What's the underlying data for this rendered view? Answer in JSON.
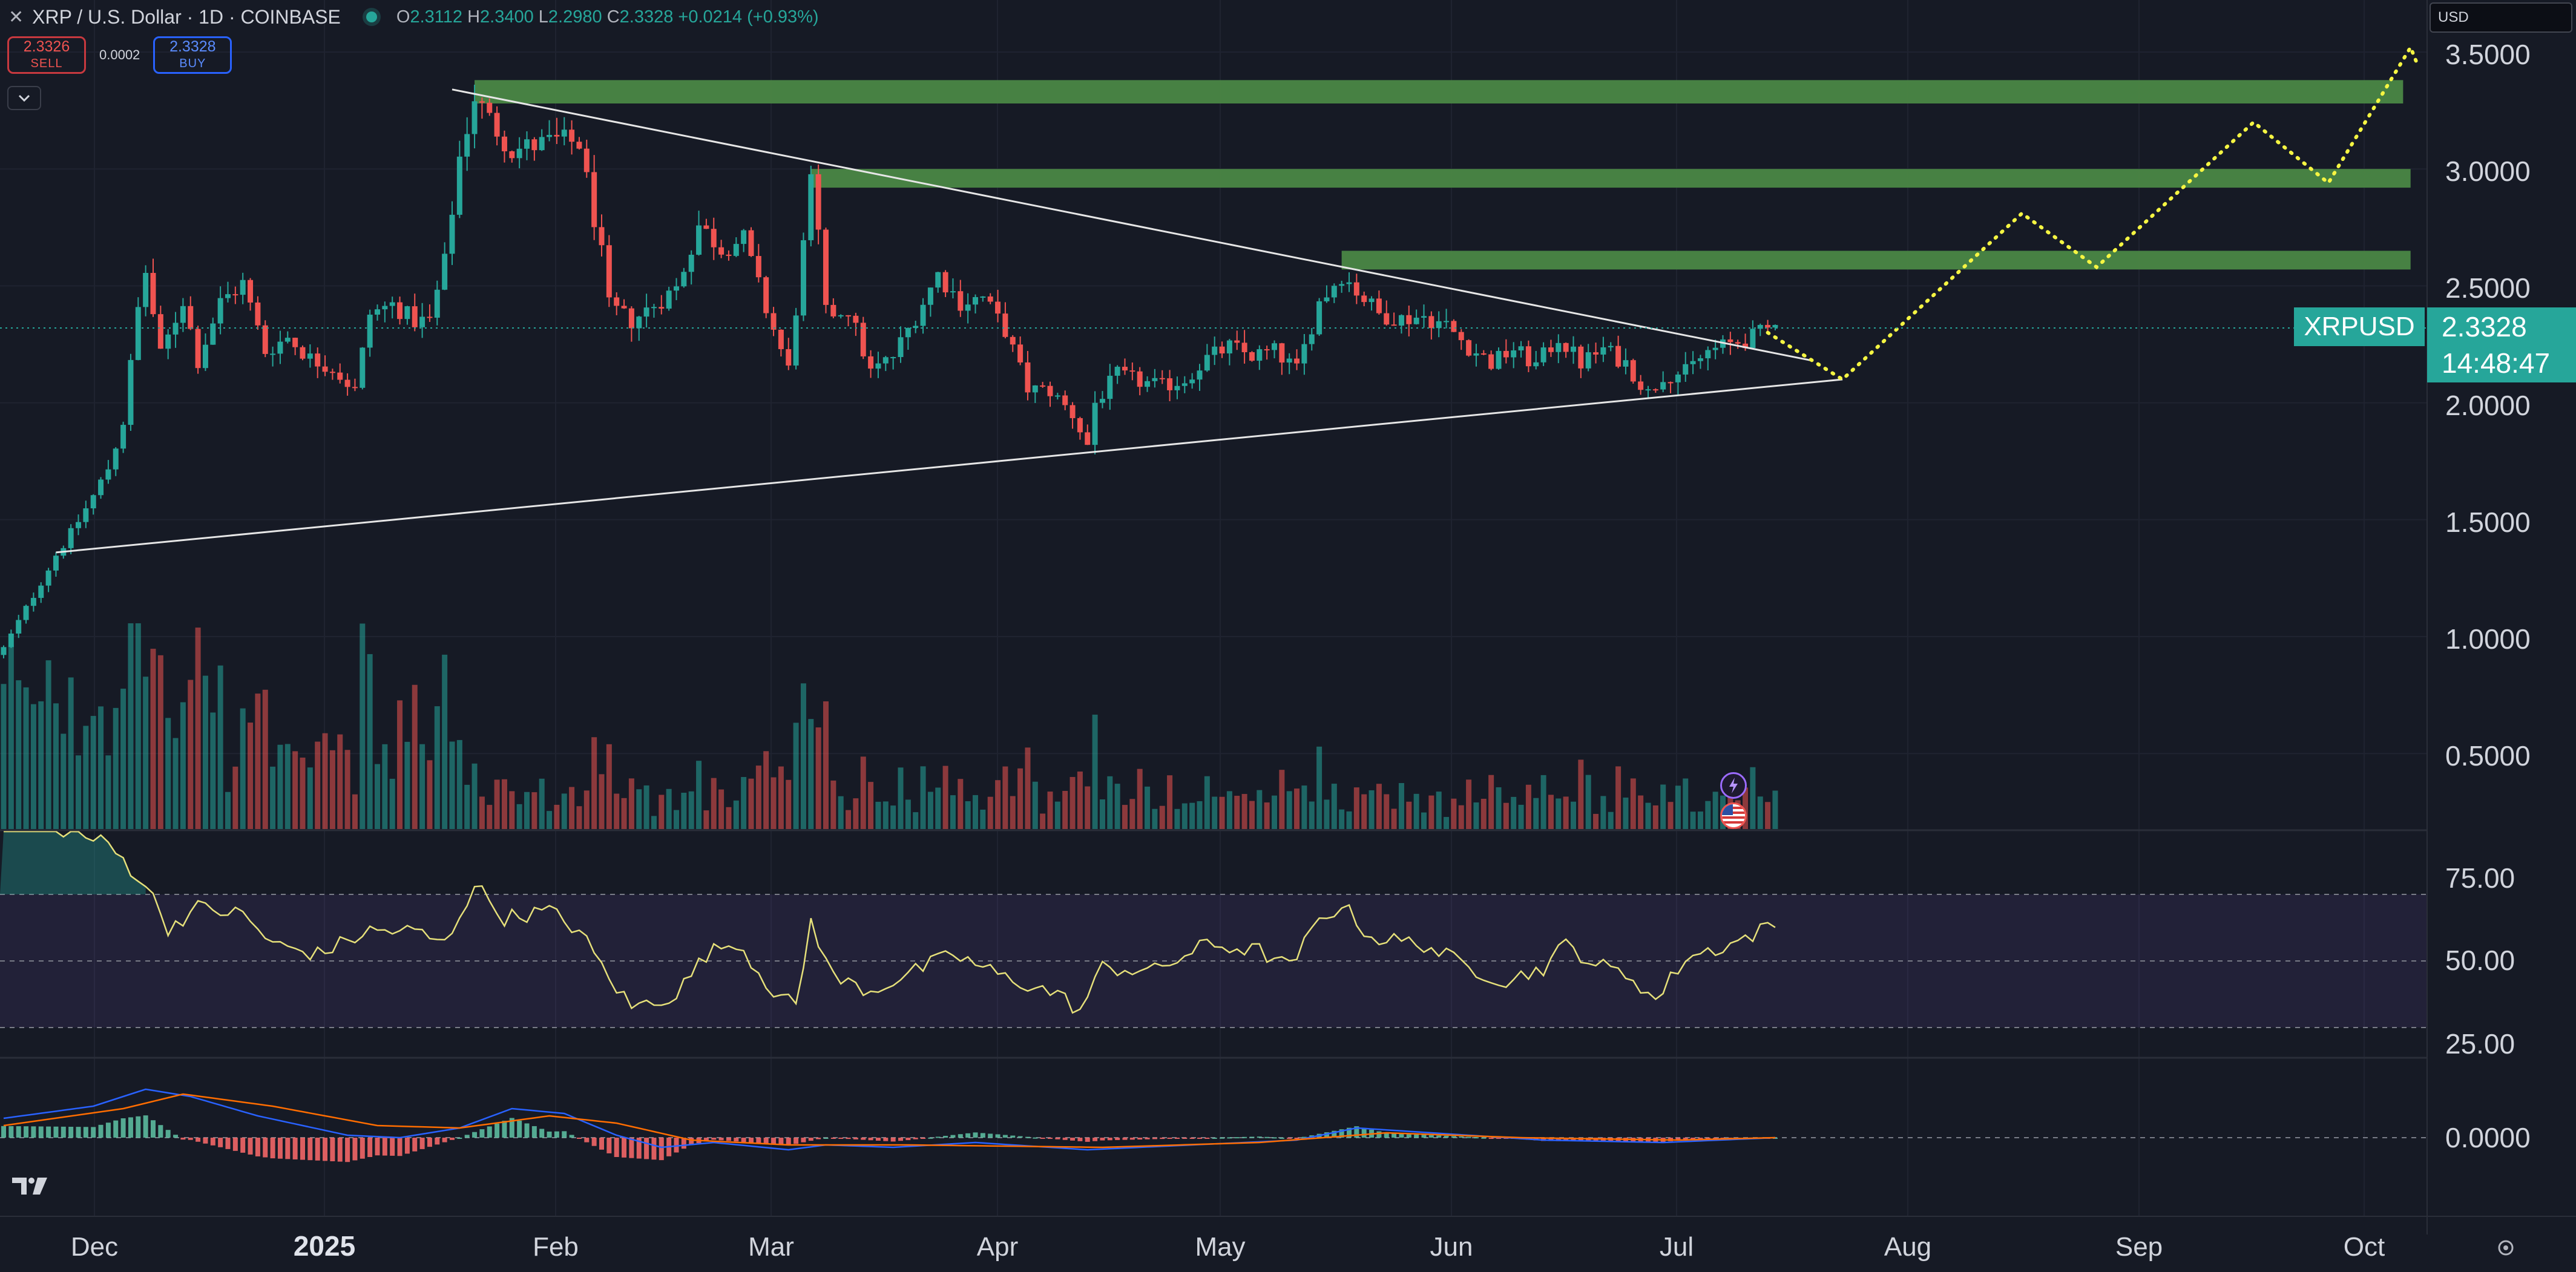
{
  "header": {
    "close_glyph": "✕",
    "symbol_title": "XRP / U.S. Dollar · 1D · COINBASE",
    "ohlc": {
      "o_label": "O",
      "o": "2.3112",
      "h_label": "H",
      "h": "2.3400",
      "l_label": "L",
      "l": "2.2980",
      "c_label": "C",
      "c": "2.3328",
      "change": "+0.0214 (+0.93%)"
    }
  },
  "trade": {
    "sell_price": "2.3326",
    "sell_label": "SELL",
    "spread": "0.0002",
    "buy_price": "2.3328",
    "buy_label": "BUY"
  },
  "currency_select": {
    "value": "USD"
  },
  "price_axis": {
    "labels": [
      "3.5000",
      "3.0000",
      "2.5000",
      "2.0000",
      "1.5000",
      "1.0000",
      "0.5000"
    ],
    "current_symbol": "XRPUSD",
    "current_price": "2.3328",
    "countdown": "14:48:47"
  },
  "rsi_axis": {
    "labels": [
      "75.00",
      "50.00",
      "25.00"
    ]
  },
  "macd_axis": {
    "labels": [
      "0.0000"
    ]
  },
  "time_axis": {
    "labels": [
      "Dec",
      "2025",
      "Feb",
      "Mar",
      "Apr",
      "May",
      "Jun",
      "Jul",
      "Aug",
      "Sep",
      "Oct"
    ]
  },
  "colors": {
    "background": "#161a25",
    "up": "#26a69a",
    "down": "#ef5350",
    "resistance_zone": "#4c8a45",
    "projection": "#f5f542",
    "rsi_line": "#e6e07a",
    "macd_line": "#2962ff",
    "signal_line": "#ff6d00"
  },
  "icons": [
    "close-icon",
    "chevron-down-icon",
    "tradingview-logo-icon",
    "lightning-event-icon",
    "us-flag-event-icon",
    "settings-icon"
  ],
  "chart_data": {
    "type": "candlestick",
    "timeframe": "1D",
    "x_range": [
      "2024-11-14",
      "2025-10-06"
    ],
    "y_range": [
      0.15,
      3.65
    ],
    "resistance_zones": [
      {
        "start": "2025-01-16",
        "end": "2025-10-01",
        "low": 3.28,
        "high": 3.38
      },
      {
        "start": "2025-03-02",
        "end": "2025-10-02",
        "low": 2.92,
        "high": 3.0
      },
      {
        "start": "2025-05-12",
        "end": "2025-10-02",
        "low": 2.57,
        "high": 2.65
      }
    ],
    "trendlines": [
      {
        "from": {
          "date": "2025-01-13",
          "price": 3.34
        },
        "to": {
          "date": "2025-07-14",
          "price": 2.18
        }
      },
      {
        "from": {
          "date": "2024-11-21",
          "price": 1.36
        },
        "to": {
          "date": "2025-07-18",
          "price": 2.1
        }
      }
    ],
    "projection_path": [
      {
        "date": "2025-07-08",
        "price": 2.3
      },
      {
        "date": "2025-07-18",
        "price": 2.1
      },
      {
        "date": "2025-08-11",
        "price": 2.81
      },
      {
        "date": "2025-08-21",
        "price": 2.58
      },
      {
        "date": "2025-09-11",
        "price": 3.2
      },
      {
        "date": "2025-09-21",
        "price": 2.94
      },
      {
        "date": "2025-10-02",
        "price": 3.52
      },
      {
        "date": "2025-10-03",
        "price": 3.44
      }
    ],
    "close_anchors": [
      [
        "2024-11-14",
        0.95
      ],
      [
        "2024-11-17",
        1.12
      ],
      [
        "2024-11-21",
        1.35
      ],
      [
        "2024-11-23",
        1.44
      ],
      [
        "2024-11-26",
        1.6
      ],
      [
        "2024-11-28",
        1.72
      ],
      [
        "2024-11-30",
        1.92
      ],
      [
        "2024-12-02",
        2.4
      ],
      [
        "2024-12-03",
        2.56
      ],
      [
        "2024-12-05",
        2.2
      ],
      [
        "2024-12-08",
        2.44
      ],
      [
        "2024-12-10",
        2.18
      ],
      [
        "2024-12-13",
        2.43
      ],
      [
        "2024-12-16",
        2.51
      ],
      [
        "2024-12-19",
        2.22
      ],
      [
        "2024-12-22",
        2.28
      ],
      [
        "2024-12-25",
        2.19
      ],
      [
        "2024-12-28",
        2.15
      ],
      [
        "2024-12-31",
        2.05
      ],
      [
        "2025-01-02",
        2.38
      ],
      [
        "2025-01-05",
        2.42
      ],
      [
        "2025-01-08",
        2.35
      ],
      [
        "2025-01-10",
        2.35
      ],
      [
        "2025-01-12",
        2.6
      ],
      [
        "2025-01-14",
        3.05
      ],
      [
        "2025-01-16",
        3.31
      ],
      [
        "2025-01-18",
        3.21
      ],
      [
        "2025-01-21",
        3.08
      ],
      [
        "2025-01-24",
        3.1
      ],
      [
        "2025-01-27",
        3.12
      ],
      [
        "2025-01-30",
        3.11
      ],
      [
        "2025-02-02",
        2.63
      ],
      [
        "2025-02-03",
        2.41
      ],
      [
        "2025-02-06",
        2.35
      ],
      [
        "2025-02-09",
        2.42
      ],
      [
        "2025-02-12",
        2.49
      ],
      [
        "2025-02-15",
        2.76
      ],
      [
        "2025-02-18",
        2.66
      ],
      [
        "2025-02-21",
        2.7
      ],
      [
        "2025-02-24",
        2.4
      ],
      [
        "2025-02-27",
        2.14
      ],
      [
        "2025-03-02",
        2.93
      ],
      [
        "2025-03-03",
        2.71
      ],
      [
        "2025-03-04",
        2.38
      ],
      [
        "2025-03-07",
        2.4
      ],
      [
        "2025-03-10",
        2.13
      ],
      [
        "2025-03-13",
        2.2
      ],
      [
        "2025-03-16",
        2.37
      ],
      [
        "2025-03-19",
        2.55
      ],
      [
        "2025-03-22",
        2.43
      ],
      [
        "2025-03-25",
        2.45
      ],
      [
        "2025-03-28",
        2.31
      ],
      [
        "2025-03-31",
        2.06
      ],
      [
        "2025-04-03",
        2.05
      ],
      [
        "2025-04-06",
        1.95
      ],
      [
        "2025-04-08",
        1.82
      ],
      [
        "2025-04-09",
        2.0
      ],
      [
        "2025-04-12",
        2.12
      ],
      [
        "2025-04-15",
        2.09
      ],
      [
        "2025-04-18",
        2.07
      ],
      [
        "2025-04-21",
        2.1
      ],
      [
        "2025-04-24",
        2.19
      ],
      [
        "2025-04-27",
        2.24
      ],
      [
        "2025-04-30",
        2.2
      ],
      [
        "2025-05-03",
        2.22
      ],
      [
        "2025-05-06",
        2.14
      ],
      [
        "2025-05-09",
        2.43
      ],
      [
        "2025-05-12",
        2.55
      ],
      [
        "2025-05-14",
        2.48
      ],
      [
        "2025-05-17",
        2.38
      ],
      [
        "2025-05-20",
        2.36
      ],
      [
        "2025-05-23",
        2.37
      ],
      [
        "2025-05-26",
        2.33
      ],
      [
        "2025-05-29",
        2.24
      ],
      [
        "2025-06-01",
        2.17
      ],
      [
        "2025-06-04",
        2.23
      ],
      [
        "2025-06-07",
        2.16
      ],
      [
        "2025-06-10",
        2.28
      ],
      [
        "2025-06-13",
        2.17
      ],
      [
        "2025-06-16",
        2.23
      ],
      [
        "2025-06-19",
        2.17
      ],
      [
        "2025-06-22",
        2.04
      ],
      [
        "2025-06-24",
        2.12
      ],
      [
        "2025-06-27",
        2.13
      ],
      [
        "2025-06-30",
        2.22
      ],
      [
        "2025-07-03",
        2.25
      ],
      [
        "2025-07-06",
        2.28
      ],
      [
        "2025-07-09",
        2.3328
      ]
    ],
    "rsi": {
      "y_range": [
        20,
        95
      ],
      "band": [
        30,
        70
      ],
      "anchors": [
        [
          "2024-11-14",
          93
        ],
        [
          "2024-11-20",
          91
        ],
        [
          "2024-11-28",
          85
        ],
        [
          "2024-12-03",
          73
        ],
        [
          "2024-12-06",
          60
        ],
        [
          "2024-12-10",
          66
        ],
        [
          "2024-12-16",
          64
        ],
        [
          "2024-12-20",
          55
        ],
        [
          "2024-12-26",
          52
        ],
        [
          "2025-01-02",
          59
        ],
        [
          "2025-01-08",
          59
        ],
        [
          "2025-01-12",
          55
        ],
        [
          "2025-01-16",
          73
        ],
        [
          "2025-01-20",
          63
        ],
        [
          "2025-01-26",
          65
        ],
        [
          "2025-01-30",
          59
        ],
        [
          "2025-02-03",
          45
        ],
        [
          "2025-02-06",
          36
        ],
        [
          "2025-02-12",
          40
        ],
        [
          "2025-02-16",
          52
        ],
        [
          "2025-02-20",
          56
        ],
        [
          "2025-02-25",
          41
        ],
        [
          "2025-02-28",
          36
        ],
        [
          "2025-03-02",
          62
        ],
        [
          "2025-03-05",
          45
        ],
        [
          "2025-03-10",
          41
        ],
        [
          "2025-03-17",
          48
        ],
        [
          "2025-03-21",
          52
        ],
        [
          "2025-03-28",
          45
        ],
        [
          "2025-04-04",
          40
        ],
        [
          "2025-04-07",
          35
        ],
        [
          "2025-04-10",
          48
        ],
        [
          "2025-04-17",
          47
        ],
        [
          "2025-04-24",
          55
        ],
        [
          "2025-05-01",
          53
        ],
        [
          "2025-05-05",
          48
        ],
        [
          "2025-05-09",
          62
        ],
        [
          "2025-05-12",
          67
        ],
        [
          "2025-05-16",
          57
        ],
        [
          "2025-05-23",
          55
        ],
        [
          "2025-05-29",
          48
        ],
        [
          "2025-06-03",
          44
        ],
        [
          "2025-06-08",
          48
        ],
        [
          "2025-06-11",
          55
        ],
        [
          "2025-06-15",
          49
        ],
        [
          "2025-06-20",
          45
        ],
        [
          "2025-06-23",
          38
        ],
        [
          "2025-06-27",
          51
        ],
        [
          "2025-07-03",
          55
        ],
        [
          "2025-07-09",
          61
        ]
      ]
    },
    "macd": {
      "y_range": [
        -0.12,
        0.2
      ],
      "zero": 0,
      "macd_anchors": [
        [
          "2024-11-14",
          0.08
        ],
        [
          "2024-11-26",
          0.13
        ],
        [
          "2024-12-03",
          0.2
        ],
        [
          "2024-12-09",
          0.17
        ],
        [
          "2024-12-18",
          0.09
        ],
        [
          "2024-12-30",
          0.01
        ],
        [
          "2025-01-06",
          0.0
        ],
        [
          "2025-01-14",
          0.04
        ],
        [
          "2025-01-21",
          0.12
        ],
        [
          "2025-01-28",
          0.1
        ],
        [
          "2025-02-04",
          0.01
        ],
        [
          "2025-02-10",
          -0.04
        ],
        [
          "2025-02-17",
          -0.02
        ],
        [
          "2025-02-27",
          -0.05
        ],
        [
          "2025-03-04",
          -0.03
        ],
        [
          "2025-03-13",
          -0.04
        ],
        [
          "2025-03-24",
          -0.02
        ],
        [
          "2025-04-08",
          -0.05
        ],
        [
          "2025-04-22",
          -0.03
        ],
        [
          "2025-05-06",
          -0.01
        ],
        [
          "2025-05-14",
          0.04
        ],
        [
          "2025-05-24",
          0.02
        ],
        [
          "2025-06-08",
          -0.01
        ],
        [
          "2025-06-24",
          -0.02
        ],
        [
          "2025-07-09",
          0.0
        ]
      ],
      "signal_anchors": [
        [
          "2024-11-14",
          0.05
        ],
        [
          "2024-11-30",
          0.12
        ],
        [
          "2024-12-08",
          0.18
        ],
        [
          "2024-12-20",
          0.13
        ],
        [
          "2025-01-03",
          0.05
        ],
        [
          "2025-01-14",
          0.04
        ],
        [
          "2025-01-26",
          0.09
        ],
        [
          "2025-02-04",
          0.06
        ],
        [
          "2025-02-14",
          -0.01
        ],
        [
          "2025-02-27",
          -0.03
        ],
        [
          "2025-03-15",
          -0.03
        ],
        [
          "2025-04-10",
          -0.04
        ],
        [
          "2025-05-01",
          -0.02
        ],
        [
          "2025-05-18",
          0.02
        ],
        [
          "2025-06-05",
          0.0
        ],
        [
          "2025-06-26",
          -0.01
        ],
        [
          "2025-07-09",
          0.0
        ]
      ]
    }
  }
}
